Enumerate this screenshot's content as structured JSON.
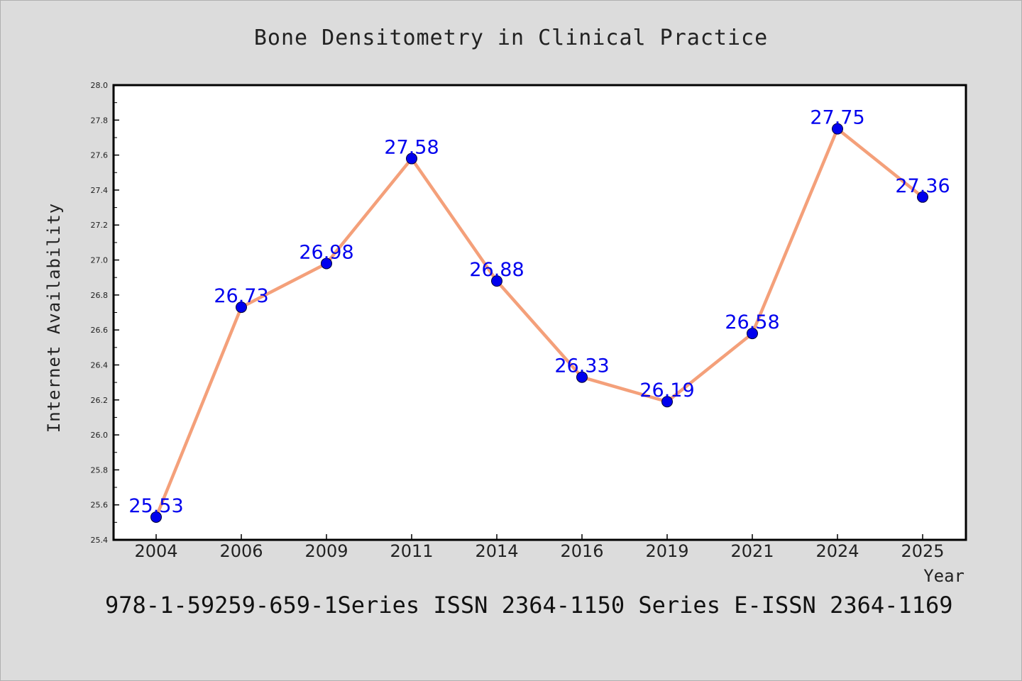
{
  "chart_data": {
    "type": "line",
    "title": "Bone Densitometry in Clinical Practice",
    "xlabel": "Year",
    "ylabel": "Internet Availability",
    "categories": [
      "2004",
      "2006",
      "2009",
      "2011",
      "2014",
      "2016",
      "2019",
      "2021",
      "2024",
      "2025"
    ],
    "series": [
      {
        "values": [
          25.53,
          26.73,
          26.98,
          27.58,
          26.88,
          26.33,
          26.19,
          26.58,
          27.75,
          27.36
        ]
      }
    ],
    "data_labels": [
      "25.53",
      "26.73",
      "26.98",
      "27.58",
      "26.88",
      "26.33",
      "26.19",
      "26.58",
      "27.75",
      "27.36"
    ],
    "ylim": [
      25.4,
      28.0
    ],
    "yticks": [
      "25.4",
      "25.6",
      "25.8",
      "26.0",
      "26.2",
      "26.4",
      "26.6",
      "26.8",
      "27.0",
      "27.2",
      "27.4",
      "27.6",
      "27.8",
      "28.0"
    ],
    "grid": false,
    "line_color": "#f4a07a",
    "marker_color": "#0000ee",
    "label_color": "#0000ee"
  },
  "footer": "978-1-59259-659-1Series ISSN 2364-1150 Series E-ISSN 2364-1169"
}
